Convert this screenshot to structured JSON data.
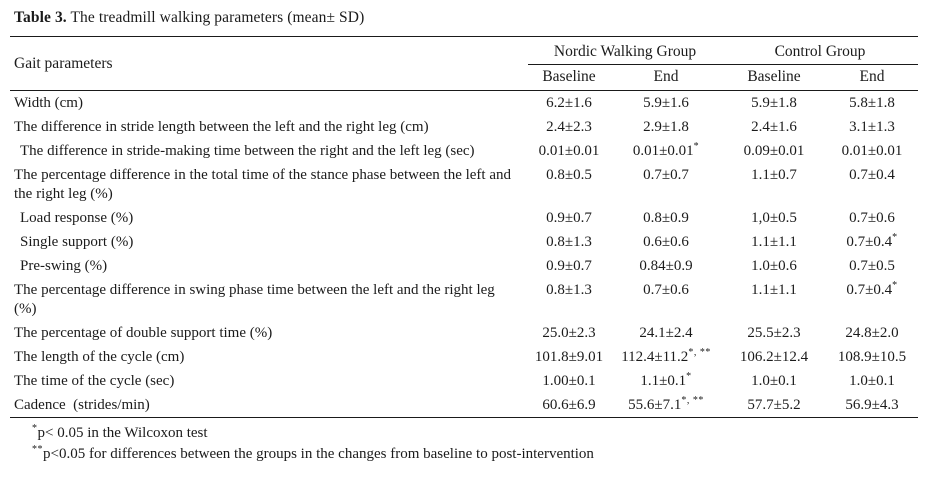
{
  "title": {
    "label": "Table 3.",
    "text": " The treadmill walking parameters (mean± SD)"
  },
  "table": {
    "row_header": "Gait parameters",
    "groups": [
      {
        "label": "Nordic Walking Group",
        "columns": [
          "Baseline",
          "End"
        ]
      },
      {
        "label": "Control Group",
        "columns": [
          "Baseline",
          "End"
        ]
      }
    ],
    "rows": [
      {
        "label": "Width (cm)",
        "indent": false,
        "cells": [
          {
            "text": "6.2±1.6"
          },
          {
            "text": "5.9±1.6"
          },
          {
            "text": "5.9±1.8"
          },
          {
            "text": "5.8±1.8"
          }
        ]
      },
      {
        "label": "The difference in stride length between the left and the right leg (cm)",
        "indent": false,
        "cells": [
          {
            "text": "2.4±2.3"
          },
          {
            "text": "2.9±1.8"
          },
          {
            "text": "2.4±1.6"
          },
          {
            "text": "3.1±1.3"
          }
        ]
      },
      {
        "label": "The difference in stride-making time between the right and the left leg (sec)",
        "indent": true,
        "cells": [
          {
            "text": "0.01±0.01"
          },
          {
            "text": "0.01±0.01",
            "sup": "*"
          },
          {
            "text": "0.09±0.01"
          },
          {
            "text": "0.01±0.01"
          }
        ]
      },
      {
        "label": "The percentage difference in the total time of the stance phase between the left and the right leg (%)",
        "indent": false,
        "cells": [
          {
            "text": "0.8±0.5"
          },
          {
            "text": "0.7±0.7"
          },
          {
            "text": "1.1±0.7"
          },
          {
            "text": "0.7±0.4"
          }
        ]
      },
      {
        "label": "Load response (%)",
        "indent": true,
        "cells": [
          {
            "text": "0.9±0.7"
          },
          {
            "text": "0.8±0.9"
          },
          {
            "text": "1,0±0.5"
          },
          {
            "text": "0.7±0.6"
          }
        ]
      },
      {
        "label": "Single support (%)",
        "indent": true,
        "cells": [
          {
            "text": "0.8±1.3"
          },
          {
            "text": "0.6±0.6"
          },
          {
            "text": "1.1±1.1"
          },
          {
            "text": "0.7±0.4",
            "sup": "*"
          }
        ]
      },
      {
        "label": "Pre-swing (%)",
        "indent": true,
        "cells": [
          {
            "text": "0.9±0.7"
          },
          {
            "text": "0.84±0.9"
          },
          {
            "text": "1.0±0.6"
          },
          {
            "text": "0.7±0.5"
          }
        ]
      },
      {
        "label": "The percentage difference in swing phase time between the left and the right leg (%)",
        "indent": false,
        "cells": [
          {
            "text": "0.8±1.3"
          },
          {
            "text": "0.7±0.6"
          },
          {
            "text": "1.1±1.1"
          },
          {
            "text": "0.7±0.4",
            "sup": "*"
          }
        ]
      },
      {
        "label": "The percentage of double support time (%)",
        "indent": false,
        "cells": [
          {
            "text": "25.0±2.3"
          },
          {
            "text": "24.1±2.4"
          },
          {
            "text": "25.5±2.3"
          },
          {
            "text": "24.8±2.0"
          }
        ]
      },
      {
        "label": "The length of the cycle (cm)",
        "indent": false,
        "cells": [
          {
            "text": "101.8±9.01"
          },
          {
            "text": "112.4±11.2",
            "sup": "*, **"
          },
          {
            "text": "106.2±12.4"
          },
          {
            "text": "108.9±10.5"
          }
        ]
      },
      {
        "label": "The time of the cycle (sec)",
        "indent": false,
        "cells": [
          {
            "text": "1.00±0.1"
          },
          {
            "text": "1.1±0.1",
            "sup": "*"
          },
          {
            "text": "1.0±0.1"
          },
          {
            "text": "1.0±0.1"
          }
        ]
      },
      {
        "label": "Cadence  (strides/min)",
        "indent": false,
        "cells": [
          {
            "text": "60.6±6.9"
          },
          {
            "text": "55.6±7.1",
            "sup": "*, **"
          },
          {
            "text": "57.7±5.2"
          },
          {
            "text": "56.9±4.3"
          }
        ]
      }
    ]
  },
  "footnotes": [
    {
      "sup": "*",
      "text": "p< 0.05 in the Wilcoxon test"
    },
    {
      "sup": "**",
      "text": "p<0.05 for differences between the groups in the changes from baseline to post-intervention"
    }
  ]
}
